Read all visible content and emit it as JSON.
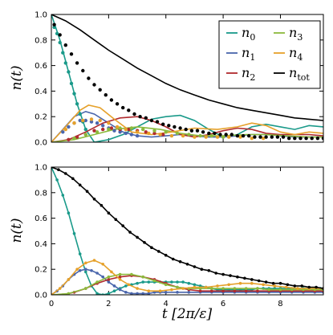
{
  "chart_data": [
    {
      "type": "line",
      "panel": "top",
      "xlabel": "",
      "ylabel": "n(t)",
      "xlim": [
        0,
        9.5
      ],
      "ylim": [
        0,
        1.0
      ],
      "xticks": [
        0,
        2,
        4,
        6,
        8
      ],
      "xtick_labels": [],
      "yticks": [
        0,
        0.2,
        0.4,
        0.6,
        0.8,
        1.0
      ],
      "ytick_labels": [
        "0.0",
        "0.2",
        "0.4",
        "0.6",
        "0.8",
        "1.0"
      ],
      "legend": {
        "position": "top-right",
        "columns": 2
      },
      "series": [
        {
          "name": "n0",
          "label_base": "n",
          "label_sub": "0",
          "color": "#1a9a8a",
          "style": "line",
          "x": [
            0,
            0.3,
            0.6,
            0.9,
            1.2,
            1.5,
            2,
            2.5,
            3,
            3.5,
            4,
            4.5,
            5,
            5.5,
            6,
            6.5,
            7,
            7.5,
            8,
            8.5,
            9,
            9.5
          ],
          "y": [
            1.0,
            0.8,
            0.55,
            0.3,
            0.1,
            0.0,
            0.02,
            0.06,
            0.12,
            0.18,
            0.2,
            0.21,
            0.17,
            0.1,
            0.04,
            0.06,
            0.12,
            0.14,
            0.12,
            0.1,
            0.13,
            0.12
          ]
        },
        {
          "name": "n1",
          "label_base": "n",
          "label_sub": "1",
          "color": "#4a66ac",
          "style": "line",
          "x": [
            0,
            0.4,
            0.8,
            1.2,
            1.5,
            2,
            2.5,
            3,
            3.5,
            4,
            4.5,
            5,
            5.5,
            6,
            6.5,
            7,
            7.5,
            8,
            8.5,
            9,
            9.5
          ],
          "y": [
            0.0,
            0.1,
            0.2,
            0.24,
            0.22,
            0.15,
            0.08,
            0.05,
            0.04,
            0.05,
            0.06,
            0.05,
            0.04,
            0.04,
            0.05,
            0.06,
            0.06,
            0.05,
            0.04,
            0.04,
            0.04
          ]
        },
        {
          "name": "n2",
          "label_base": "n",
          "label_sub": "2",
          "color": "#b02a2e",
          "style": "line",
          "x": [
            0,
            0.6,
            1.2,
            1.8,
            2.4,
            3,
            3.5,
            4,
            4.5,
            5,
            5.5,
            6,
            6.5,
            7,
            7.5,
            8,
            8.5,
            9,
            9.5
          ],
          "y": [
            0.0,
            0.02,
            0.08,
            0.15,
            0.19,
            0.2,
            0.17,
            0.12,
            0.06,
            0.04,
            0.06,
            0.09,
            0.11,
            0.1,
            0.07,
            0.06,
            0.06,
            0.06,
            0.05
          ]
        },
        {
          "name": "n3",
          "label_base": "n",
          "label_sub": "3",
          "color": "#8cba3c",
          "style": "line",
          "x": [
            0,
            0.8,
            1.5,
            2.2,
            3,
            3.8,
            4.5,
            5.2,
            6,
            6.8,
            7.5,
            8.2,
            9,
            9.5
          ],
          "y": [
            0.0,
            0.02,
            0.06,
            0.1,
            0.12,
            0.1,
            0.07,
            0.05,
            0.05,
            0.06,
            0.06,
            0.05,
            0.04,
            0.04
          ]
        },
        {
          "name": "n4",
          "label_base": "n",
          "label_sub": "4",
          "color": "#e6a12b",
          "style": "line",
          "x": [
            0,
            0.5,
            1,
            1.3,
            1.7,
            2.2,
            2.8,
            3.5,
            4.2,
            5,
            5.8,
            6.5,
            7,
            7.5,
            8,
            8.5,
            9,
            9.5
          ],
          "y": [
            0.0,
            0.12,
            0.25,
            0.29,
            0.27,
            0.18,
            0.08,
            0.06,
            0.08,
            0.11,
            0.1,
            0.12,
            0.15,
            0.13,
            0.08,
            0.06,
            0.08,
            0.07
          ]
        },
        {
          "name": "ntot",
          "label_base": "n",
          "label_sub": "tot",
          "color": "#000000",
          "style": "line",
          "x": [
            0,
            0.5,
            1,
            1.5,
            2,
            2.5,
            3,
            3.5,
            4,
            4.5,
            5,
            5.5,
            6,
            6.5,
            7,
            7.5,
            8,
            8.5,
            9,
            9.5
          ],
          "y": [
            1.0,
            0.95,
            0.88,
            0.8,
            0.72,
            0.65,
            0.58,
            0.52,
            0.46,
            0.41,
            0.37,
            0.33,
            0.3,
            0.27,
            0.25,
            0.23,
            0.21,
            0.19,
            0.18,
            0.17
          ]
        },
        {
          "name": "n0 markers",
          "color": "#1a9a8a",
          "style": "markers",
          "x": [
            0.1,
            0.2,
            0.3,
            0.4,
            0.5,
            0.6,
            0.7,
            0.8,
            0.9,
            1.0,
            1.1,
            1.2
          ],
          "y": [
            0.9,
            0.85,
            0.78,
            0.7,
            0.62,
            0.55,
            0.46,
            0.38,
            0.3,
            0.22,
            0.16,
            0.1
          ]
        },
        {
          "name": "n1 markers",
          "color": "#4a66ac",
          "style": "markers",
          "x": [
            0.4,
            0.6,
            0.8,
            1.0,
            1.2,
            1.4,
            1.6,
            1.8,
            2.0,
            2.2,
            2.4,
            2.6,
            2.8,
            3.0
          ],
          "y": [
            0.08,
            0.12,
            0.15,
            0.17,
            0.17,
            0.16,
            0.15,
            0.13,
            0.11,
            0.09,
            0.08,
            0.07,
            0.06,
            0.05
          ]
        },
        {
          "name": "n2 markers",
          "color": "#b02a2e",
          "style": "markers",
          "x": [
            0.6,
            0.9,
            1.2,
            1.5,
            1.8,
            2.1,
            2.4,
            2.7,
            3.0,
            3.3,
            3.6,
            3.9
          ],
          "y": [
            0.02,
            0.04,
            0.06,
            0.09,
            0.1,
            0.11,
            0.1,
            0.1,
            0.09,
            0.08,
            0.07,
            0.06
          ]
        },
        {
          "name": "n3 markers",
          "color": "#8cba3c",
          "style": "markers",
          "x": [
            0.8,
            1.2,
            1.6,
            2.0,
            2.4,
            2.8,
            3.2,
            3.6,
            4.0,
            4.4,
            4.8,
            5.2,
            5.6,
            6.0
          ],
          "y": [
            0.03,
            0.06,
            0.08,
            0.1,
            0.11,
            0.11,
            0.1,
            0.09,
            0.08,
            0.07,
            0.06,
            0.05,
            0.05,
            0.04
          ]
        },
        {
          "name": "n4 markers",
          "color": "#e6a12b",
          "style": "markers",
          "x": [
            0.5,
            0.8,
            1.1,
            1.4,
            1.7,
            2.0,
            2.3,
            2.6,
            3.0,
            3.4,
            3.8,
            4.2,
            4.6,
            5.0,
            5.4,
            5.8,
            6.2,
            6.6,
            7.0,
            7.4
          ],
          "y": [
            0.1,
            0.15,
            0.17,
            0.18,
            0.17,
            0.15,
            0.12,
            0.1,
            0.08,
            0.07,
            0.06,
            0.05,
            0.05,
            0.04,
            0.04,
            0.04,
            0.04,
            0.04,
            0.03,
            0.03
          ]
        },
        {
          "name": "ntot markers",
          "color": "#000000",
          "style": "markers",
          "x": [
            0.1,
            0.3,
            0.5,
            0.7,
            0.9,
            1.1,
            1.3,
            1.5,
            1.7,
            1.9,
            2.1,
            2.3,
            2.5,
            2.7,
            2.9,
            3.1,
            3.3,
            3.5,
            3.7,
            3.9,
            4.1,
            4.3,
            4.5,
            4.7,
            4.9,
            5.1,
            5.3,
            5.5,
            5.7,
            5.9,
            6.1,
            6.3,
            6.5,
            6.7,
            6.9,
            7.1,
            7.3,
            7.5,
            7.7,
            7.9,
            8.1,
            8.3,
            8.5,
            8.7,
            8.9,
            9.1,
            9.3,
            9.5
          ],
          "y": [
            0.92,
            0.84,
            0.76,
            0.69,
            0.62,
            0.56,
            0.5,
            0.45,
            0.41,
            0.37,
            0.33,
            0.3,
            0.27,
            0.25,
            0.22,
            0.2,
            0.19,
            0.17,
            0.16,
            0.14,
            0.13,
            0.12,
            0.11,
            0.1,
            0.09,
            0.09,
            0.08,
            0.07,
            0.07,
            0.06,
            0.06,
            0.06,
            0.05,
            0.05,
            0.05,
            0.04,
            0.04,
            0.04,
            0.04,
            0.04,
            0.04,
            0.03,
            0.03,
            0.03,
            0.03,
            0.03,
            0.03,
            0.03
          ]
        }
      ]
    },
    {
      "type": "line",
      "panel": "bottom",
      "xlabel": "t [2π/ε]",
      "ylabel": "n(t)",
      "xlim": [
        0,
        9.5
      ],
      "ylim": [
        0,
        1.0
      ],
      "xticks": [
        0,
        2,
        4,
        6,
        8
      ],
      "xtick_labels": [
        "0",
        "2",
        "4",
        "6",
        "8"
      ],
      "yticks": [
        0,
        0.2,
        0.4,
        0.6,
        0.8,
        1.0
      ],
      "ytick_labels": [
        "0.0",
        "0.2",
        "0.4",
        "0.6",
        "0.8",
        "1.0"
      ],
      "series": [
        {
          "name": "n0",
          "color": "#1a9a8a",
          "x": [
            0,
            0.2,
            0.4,
            0.6,
            0.8,
            1.0,
            1.2,
            1.4,
            1.6,
            1.8,
            2.0,
            2.2,
            2.4,
            2.6,
            2.8,
            3.0,
            3.2,
            3.4,
            3.6,
            3.8,
            4.0,
            4.2,
            4.4,
            4.6,
            4.8,
            5.0,
            5.2,
            5.4,
            5.6,
            5.8,
            6.0,
            6.2,
            6.4,
            6.6,
            6.8,
            7.0,
            7.2,
            7.4,
            7.6,
            7.8,
            8.0,
            8.2,
            8.4,
            8.6,
            8.8,
            9.0,
            9.2,
            9.4
          ],
          "y": [
            1.0,
            0.9,
            0.78,
            0.64,
            0.48,
            0.32,
            0.18,
            0.07,
            0.01,
            0.0,
            0.01,
            0.03,
            0.05,
            0.07,
            0.08,
            0.09,
            0.1,
            0.1,
            0.1,
            0.1,
            0.1,
            0.1,
            0.1,
            0.1,
            0.09,
            0.08,
            0.07,
            0.06,
            0.05,
            0.04,
            0.04,
            0.04,
            0.04,
            0.04,
            0.04,
            0.04,
            0.05,
            0.05,
            0.05,
            0.05,
            0.05,
            0.05,
            0.05,
            0.05,
            0.05,
            0.05,
            0.05,
            0.05
          ]
        },
        {
          "name": "n1",
          "color": "#4a66ac",
          "x": [
            0,
            0.2,
            0.4,
            0.6,
            0.8,
            1.0,
            1.2,
            1.4,
            1.6,
            1.8,
            2.0,
            2.2,
            2.4,
            2.6,
            2.8,
            3.0,
            3.2,
            3.4,
            3.6,
            3.8,
            4.0,
            4.4,
            4.8,
            5.2,
            5.6,
            6.0,
            6.4,
            6.8,
            7.2,
            7.6,
            8.0,
            8.4,
            8.8,
            9.2,
            9.5
          ],
          "y": [
            0.0,
            0.03,
            0.07,
            0.12,
            0.16,
            0.19,
            0.2,
            0.19,
            0.17,
            0.14,
            0.1,
            0.07,
            0.04,
            0.02,
            0.01,
            0.01,
            0.01,
            0.01,
            0.02,
            0.02,
            0.02,
            0.02,
            0.02,
            0.02,
            0.02,
            0.02,
            0.02,
            0.02,
            0.02,
            0.02,
            0.02,
            0.02,
            0.02,
            0.02,
            0.02
          ]
        },
        {
          "name": "n2",
          "color": "#b02a2e",
          "x": [
            0,
            0.4,
            0.8,
            1.2,
            1.6,
            2.0,
            2.4,
            2.8,
            3.2,
            3.6,
            4.0,
            4.4,
            4.8,
            5.2,
            5.6,
            6.0,
            6.4,
            6.8,
            7.2,
            7.6,
            8.0,
            8.4,
            8.8,
            9.2,
            9.5
          ],
          "y": [
            0.0,
            0.0,
            0.02,
            0.05,
            0.09,
            0.12,
            0.14,
            0.15,
            0.14,
            0.12,
            0.09,
            0.06,
            0.04,
            0.03,
            0.03,
            0.03,
            0.03,
            0.03,
            0.03,
            0.03,
            0.03,
            0.03,
            0.03,
            0.03,
            0.03
          ]
        },
        {
          "name": "n3",
          "color": "#8cba3c",
          "x": [
            0,
            0.6,
            1.2,
            1.6,
            2.0,
            2.4,
            2.8,
            3.2,
            3.6,
            4.0,
            4.4,
            4.8,
            5.2,
            5.6,
            6.0,
            6.4,
            6.8,
            7.2,
            7.6,
            8.0,
            8.4,
            8.8,
            9.2,
            9.5
          ],
          "y": [
            0.0,
            0.01,
            0.05,
            0.1,
            0.14,
            0.16,
            0.16,
            0.14,
            0.11,
            0.08,
            0.06,
            0.05,
            0.05,
            0.05,
            0.05,
            0.05,
            0.05,
            0.05,
            0.04,
            0.04,
            0.04,
            0.04,
            0.04,
            0.04
          ]
        },
        {
          "name": "n4",
          "color": "#e6a12b",
          "x": [
            0,
            0.3,
            0.6,
            0.9,
            1.2,
            1.5,
            1.8,
            2.1,
            2.4,
            2.7,
            3.0,
            3.4,
            3.8,
            4.2,
            4.6,
            5.0,
            5.4,
            5.8,
            6.2,
            6.6,
            7.0,
            7.4,
            7.8,
            8.2,
            8.6,
            9.0,
            9.5
          ],
          "y": [
            0.0,
            0.05,
            0.12,
            0.2,
            0.25,
            0.27,
            0.24,
            0.18,
            0.12,
            0.08,
            0.05,
            0.03,
            0.03,
            0.04,
            0.05,
            0.06,
            0.06,
            0.07,
            0.08,
            0.09,
            0.09,
            0.08,
            0.07,
            0.06,
            0.05,
            0.05,
            0.05
          ]
        },
        {
          "name": "ntot",
          "color": "#000000",
          "x": [
            0,
            0.25,
            0.5,
            0.75,
            1.0,
            1.25,
            1.5,
            1.75,
            2.0,
            2.25,
            2.5,
            2.75,
            3.0,
            3.25,
            3.5,
            3.75,
            4.0,
            4.25,
            4.5,
            4.75,
            5.0,
            5.25,
            5.5,
            5.75,
            6.0,
            6.25,
            6.5,
            6.75,
            7.0,
            7.25,
            7.5,
            7.75,
            8.0,
            8.25,
            8.5,
            8.75,
            9.0,
            9.25,
            9.5
          ],
          "y": [
            1.0,
            0.98,
            0.95,
            0.91,
            0.86,
            0.81,
            0.75,
            0.7,
            0.64,
            0.59,
            0.54,
            0.49,
            0.45,
            0.41,
            0.37,
            0.34,
            0.31,
            0.28,
            0.26,
            0.24,
            0.22,
            0.2,
            0.19,
            0.17,
            0.16,
            0.15,
            0.14,
            0.13,
            0.12,
            0.11,
            0.1,
            0.09,
            0.09,
            0.08,
            0.07,
            0.07,
            0.06,
            0.06,
            0.05
          ]
        }
      ]
    }
  ]
}
